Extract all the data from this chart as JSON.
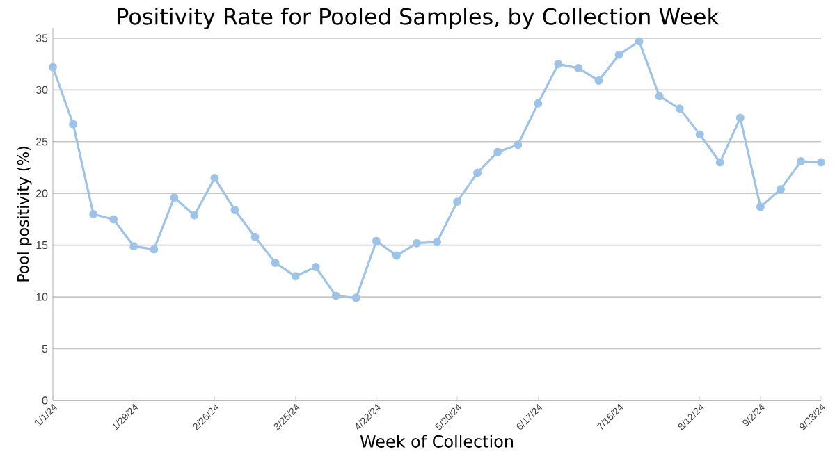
{
  "chart_data": {
    "type": "line",
    "title": "Positivity Rate for Pooled Samples, by Collection Week",
    "xlabel": "Week of Collection",
    "ylabel": "Pool positivity (%)",
    "x": [
      "2024-01-01",
      "2024-01-08",
      "2024-01-15",
      "2024-01-22",
      "2024-01-29",
      "2024-02-05",
      "2024-02-12",
      "2024-02-19",
      "2024-02-26",
      "2024-03-04",
      "2024-03-11",
      "2024-03-18",
      "2024-03-25",
      "2024-04-01",
      "2024-04-08",
      "2024-04-15",
      "2024-04-22",
      "2024-04-29",
      "2024-05-06",
      "2024-05-13",
      "2024-05-20",
      "2024-05-27",
      "2024-06-03",
      "2024-06-10",
      "2024-06-17",
      "2024-06-24",
      "2024-07-01",
      "2024-07-08",
      "2024-07-15",
      "2024-07-22",
      "2024-07-29",
      "2024-08-05",
      "2024-08-12",
      "2024-08-19",
      "2024-08-26",
      "2024-09-02",
      "2024-09-09",
      "2024-09-16",
      "2024-09-23"
    ],
    "series": [
      {
        "color": "#9dc3e8",
        "values": [
          32.2,
          26.7,
          18.0,
          17.5,
          14.9,
          14.6,
          19.6,
          17.9,
          21.5,
          18.4,
          15.8,
          13.3,
          12.0,
          12.9,
          10.1,
          9.9,
          15.4,
          14.0,
          15.2,
          15.3,
          19.2,
          22.0,
          24.0,
          24.7,
          28.7,
          32.5,
          32.1,
          30.9,
          33.4,
          34.7,
          29.4,
          28.2,
          25.7,
          23.0,
          27.3,
          18.7,
          20.4,
          23.1,
          23.0
        ]
      }
    ],
    "xlim": [
      "2024-01-01",
      "2024-09-23"
    ],
    "xticks": [
      {
        "value": "2024-01-01",
        "label": "1/1/24"
      },
      {
        "value": "2024-01-29",
        "label": "1/29/24"
      },
      {
        "value": "2024-02-26",
        "label": "2/26/24"
      },
      {
        "value": "2024-03-25",
        "label": "3/25/24"
      },
      {
        "value": "2024-04-22",
        "label": "4/22/24"
      },
      {
        "value": "2024-05-20",
        "label": "5/20/24"
      },
      {
        "value": "2024-06-17",
        "label": "6/17/24"
      },
      {
        "value": "2024-07-15",
        "label": "7/15/24"
      },
      {
        "value": "2024-08-12",
        "label": "8/12/24"
      },
      {
        "value": "2024-09-02",
        "label": "9/2/24"
      },
      {
        "value": "2024-09-23",
        "label": "9/23/24"
      }
    ],
    "ylim": [
      0,
      36
    ],
    "yticks": [
      0,
      5,
      10,
      15,
      20,
      25,
      30,
      35
    ],
    "grid": "y",
    "marker": "circle",
    "line_style": "solid"
  }
}
